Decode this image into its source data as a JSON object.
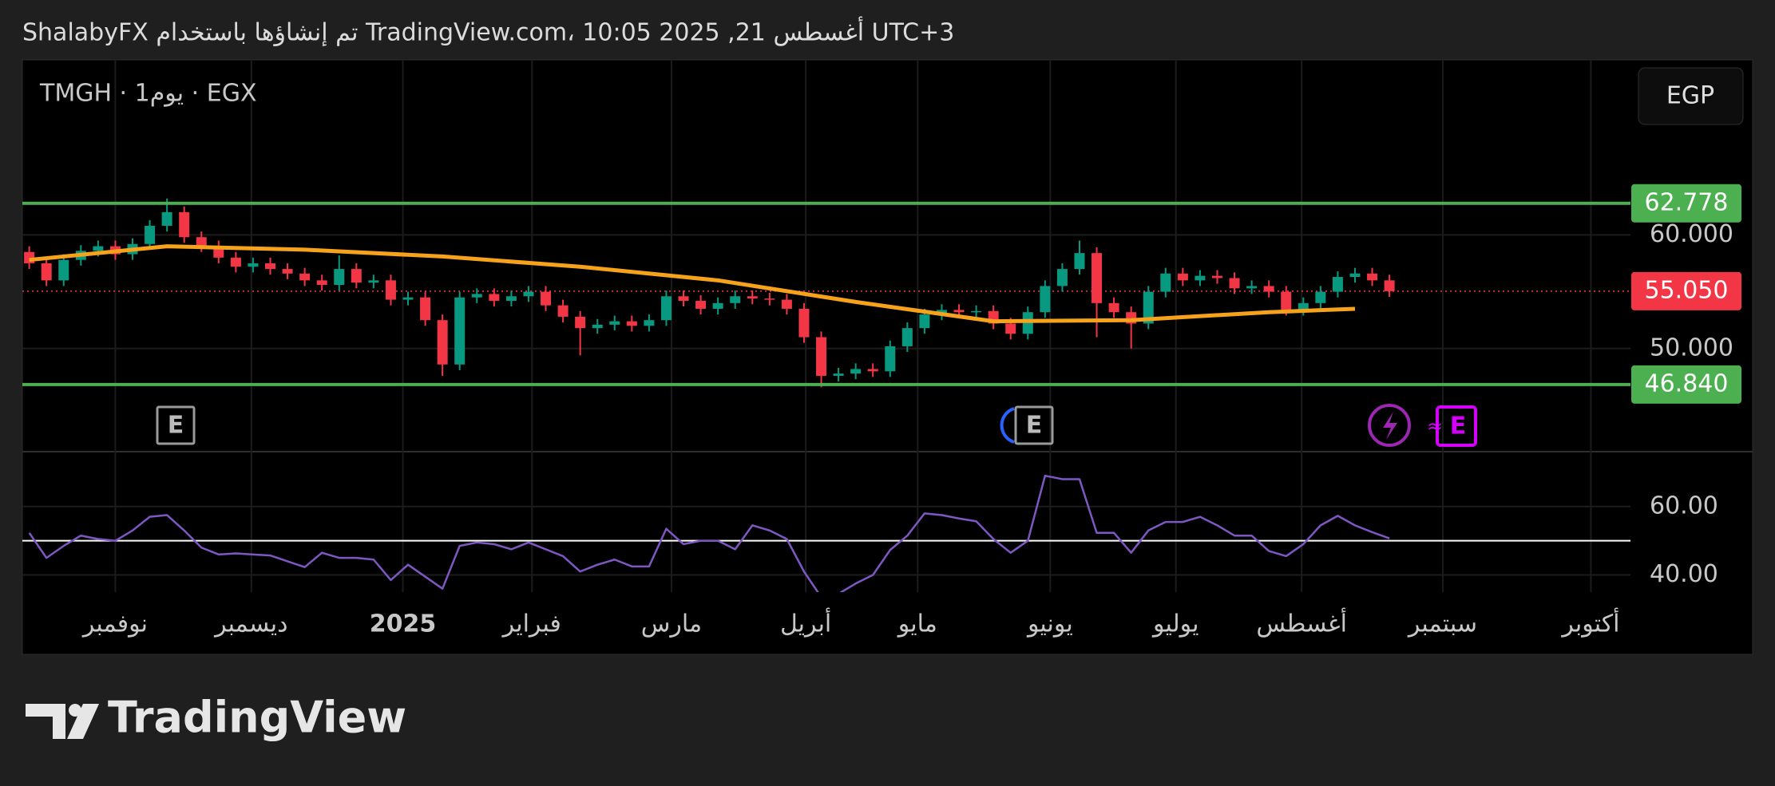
{
  "header": {
    "title": "ShalabyFX تم إنشاؤها باستخدام TradingView.com، 10:05 2025 ,21 أغسطس UTC+3"
  },
  "footer": {
    "brand": "TradingView"
  },
  "chart_data": [
    {
      "type": "candlestick",
      "title": "TMGH · يوم1 · EGX",
      "currency": "EGP",
      "up_color": "#089981",
      "down_color": "#f23645",
      "xlim": [
        -0.4,
        93
      ],
      "ylim": [
        41,
        75.4
      ],
      "yticks": [
        {
          "value": 50,
          "label": "50.000"
        },
        {
          "value": 60,
          "label": "60.000"
        }
      ],
      "x": [
        0,
        1,
        2,
        3,
        4,
        5,
        6,
        7,
        8,
        9,
        10,
        11,
        12,
        13,
        14,
        15,
        16,
        17,
        18,
        19,
        20,
        21,
        22,
        23,
        24,
        25,
        26,
        27,
        28,
        29,
        30,
        31,
        32,
        33,
        34,
        35,
        36,
        37,
        38,
        39,
        40,
        41,
        42,
        43,
        44,
        45,
        46,
        47,
        48,
        49,
        50,
        51,
        52,
        53,
        54,
        55,
        56,
        57,
        58,
        59,
        60,
        61,
        62,
        63,
        64,
        65,
        66,
        67,
        68,
        69,
        70,
        71,
        72,
        73,
        74,
        75,
        76,
        77,
        78,
        79
      ],
      "open": [
        58.5,
        57.5,
        56.0,
        57.8,
        58.6,
        59.0,
        58.3,
        59.2,
        60.8,
        62.0,
        59.8,
        59.0,
        58.0,
        57.2,
        57.5,
        57.0,
        56.6,
        56.0,
        55.6,
        57.0,
        55.8,
        56.0,
        54.3,
        54.5,
        52.5,
        48.6,
        54.5,
        54.8,
        54.2,
        54.6,
        55.0,
        53.8,
        52.8,
        51.8,
        52.1,
        52.4,
        52.0,
        52.5,
        54.6,
        54.2,
        53.5,
        54.0,
        54.6,
        54.4,
        54.3,
        53.5,
        51.0,
        47.6,
        47.8,
        48.2,
        48.0,
        50.2,
        51.8,
        53.0,
        53.4,
        53.2,
        53.3,
        52.2,
        51.3,
        53.2,
        55.5,
        57.0,
        58.4,
        54.0,
        53.2,
        52.2,
        55.0,
        56.6,
        56.0,
        56.4,
        56.2,
        55.3,
        55.5,
        55.0,
        53.4,
        54.0,
        55.0,
        56.3,
        56.6,
        56.0
      ],
      "high": [
        59.0,
        58.0,
        58.3,
        59.1,
        59.5,
        59.5,
        59.7,
        61.3,
        63.2,
        62.5,
        60.3,
        59.5,
        58.5,
        58.0,
        58.0,
        57.5,
        57.1,
        56.5,
        58.2,
        57.5,
        56.5,
        56.5,
        55.0,
        55.0,
        53.0,
        55.0,
        55.3,
        55.3,
        55.1,
        55.5,
        55.5,
        54.3,
        53.3,
        52.6,
        52.9,
        52.9,
        53.0,
        55.1,
        55.1,
        54.7,
        54.5,
        55.1,
        55.1,
        54.9,
        54.8,
        54.0,
        51.5,
        48.3,
        48.7,
        48.7,
        50.7,
        52.3,
        53.5,
        53.9,
        53.9,
        53.8,
        53.8,
        52.7,
        53.7,
        56.0,
        57.5,
        59.5,
        58.9,
        54.5,
        53.7,
        55.5,
        57.1,
        57.1,
        56.9,
        56.9,
        56.7,
        56.0,
        56.0,
        55.5,
        54.5,
        55.5,
        56.8,
        57.1,
        57.1,
        56.5
      ],
      "low": [
        57.0,
        55.5,
        55.5,
        57.3,
        58.1,
        57.8,
        57.8,
        58.7,
        60.3,
        59.3,
        58.5,
        57.5,
        56.7,
        56.7,
        56.5,
        56.1,
        55.5,
        55.1,
        55.1,
        55.3,
        55.3,
        53.8,
        53.8,
        52.0,
        47.6,
        48.1,
        54.0,
        53.7,
        53.7,
        54.1,
        53.3,
        52.3,
        49.4,
        51.3,
        51.6,
        51.5,
        51.5,
        52.0,
        53.7,
        53.0,
        53.0,
        53.5,
        53.9,
        53.8,
        53.0,
        50.5,
        46.6,
        47.1,
        47.3,
        47.5,
        47.5,
        49.7,
        51.3,
        52.5,
        52.7,
        52.7,
        51.7,
        50.8,
        50.8,
        52.7,
        55.0,
        56.5,
        51.0,
        52.7,
        50.0,
        51.7,
        54.5,
        55.5,
        55.5,
        55.7,
        54.8,
        54.8,
        54.5,
        52.9,
        52.9,
        53.5,
        54.5,
        55.8,
        55.5,
        54.55
      ],
      "close": [
        57.5,
        56.0,
        57.8,
        58.6,
        59.0,
        58.3,
        59.2,
        60.8,
        62.0,
        59.8,
        59.0,
        58.0,
        57.2,
        57.5,
        57.0,
        56.6,
        56.0,
        55.6,
        57.0,
        55.8,
        56.0,
        54.3,
        54.5,
        52.5,
        48.6,
        54.5,
        54.8,
        54.2,
        54.6,
        55.0,
        53.8,
        52.8,
        51.8,
        52.1,
        52.4,
        52.0,
        52.5,
        54.6,
        54.2,
        53.5,
        54.0,
        54.6,
        54.4,
        54.3,
        53.5,
        51.0,
        47.6,
        47.8,
        48.2,
        48.0,
        50.2,
        51.8,
        53.0,
        53.4,
        53.2,
        53.3,
        52.2,
        51.3,
        53.2,
        55.5,
        57.0,
        58.4,
        54.0,
        53.2,
        52.2,
        55.0,
        56.6,
        56.0,
        56.4,
        56.2,
        55.3,
        55.5,
        55.0,
        53.4,
        54.0,
        55.0,
        56.3,
        56.6,
        56.0,
        55.05
      ],
      "overlay": {
        "color": "#f7a21b",
        "x": [
          0,
          8,
          16,
          24,
          32,
          40,
          48,
          56,
          64,
          72,
          77
        ],
        "values": [
          57.8,
          59.0,
          58.7,
          58.1,
          57.2,
          56.0,
          54.1,
          52.4,
          52.5,
          53.2,
          53.5
        ]
      },
      "levels": [
        {
          "value": 62.778,
          "label": "62.778",
          "color": "#4caf50"
        },
        {
          "value": 46.84,
          "label": "46.840",
          "color": "#4caf50"
        }
      ],
      "last_price": {
        "value": 55.05,
        "label": "55.050",
        "color": "#f23645"
      }
    },
    {
      "type": "line",
      "color": "#7e57c2",
      "xlim": [
        -0.4,
        93
      ],
      "ylim": [
        35,
        75.8
      ],
      "hline": 50,
      "yticks": [
        {
          "value": 40,
          "label": "40.00"
        },
        {
          "value": 60,
          "label": "60.00"
        }
      ],
      "xticks": [
        {
          "value": 5,
          "label": "نوفمبر"
        },
        {
          "value": 12.9,
          "label": "ديسمبر"
        },
        {
          "value": 21.7,
          "label": "2025"
        },
        {
          "value": 29.2,
          "label": "فبراير"
        },
        {
          "value": 37.3,
          "label": "مارس"
        },
        {
          "value": 45.1,
          "label": "أبريل"
        },
        {
          "value": 51.6,
          "label": "مايو"
        },
        {
          "value": 59.3,
          "label": "يونيو"
        },
        {
          "value": 66.6,
          "label": "يوليو"
        },
        {
          "value": 73.9,
          "label": "أغسطس"
        },
        {
          "value": 82.1,
          "label": "سبتمبر"
        },
        {
          "value": 90.7,
          "label": "أكتوبر"
        }
      ],
      "x": [
        0,
        1,
        2,
        3,
        4,
        5,
        6,
        7,
        8,
        9,
        10,
        11,
        12,
        13,
        14,
        15,
        16,
        17,
        18,
        19,
        20,
        21,
        22,
        23,
        24,
        25,
        26,
        27,
        28,
        29,
        30,
        31,
        32,
        33,
        34,
        35,
        36,
        37,
        38,
        39,
        40,
        41,
        42,
        43,
        44,
        45,
        46,
        47,
        48,
        49,
        50,
        51,
        52,
        53,
        54,
        55,
        56,
        57,
        58,
        59,
        60,
        61,
        62,
        63,
        64,
        65,
        66,
        67,
        68,
        69,
        70,
        71,
        72,
        73,
        74,
        75,
        76,
        77,
        78,
        79
      ],
      "values": [
        52.3,
        45,
        48.5,
        51.5,
        50.5,
        50,
        53,
        57,
        57.5,
        53,
        48,
        46,
        46.3,
        46,
        45.7,
        44,
        42.3,
        46.5,
        45,
        45,
        44.5,
        38.5,
        43,
        39.5,
        36,
        48.5,
        49.5,
        49,
        47.5,
        49.5,
        47.5,
        45.5,
        41,
        43,
        44.5,
        42.5,
        42.5,
        53.5,
        49,
        50,
        50,
        47.5,
        54.5,
        53,
        50.5,
        41,
        33.5,
        34.5,
        37.5,
        40,
        47.3,
        51.5,
        58,
        57.5,
        56.5,
        55.7,
        50.5,
        46.5,
        50,
        69,
        68,
        68,
        52.3,
        52.3,
        46.5,
        53,
        55.5,
        55.5,
        57,
        54.5,
        51.5,
        51.5,
        47,
        45.5,
        49,
        54.5,
        57.3,
        54.5,
        52.5,
        50.7
      ]
    }
  ]
}
